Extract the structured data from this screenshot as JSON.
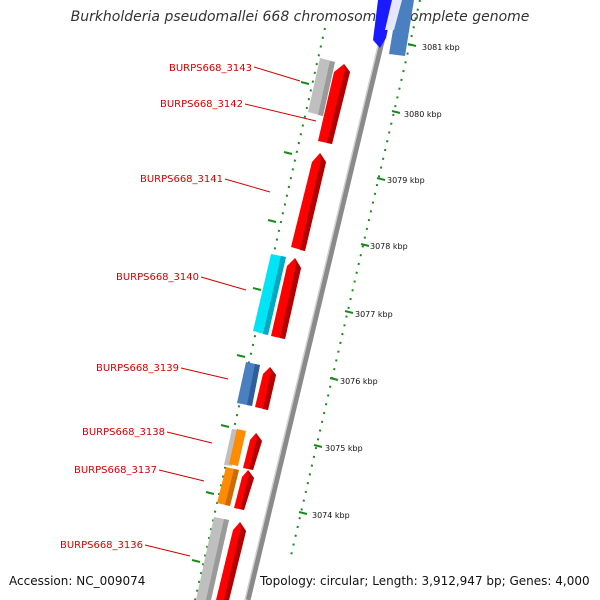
{
  "title": "Burkholderia pseudomallei 668 chromosome I, complete genome",
  "footer": {
    "accession": "Accession: NC_009074",
    "summary": "Topology: circular; Length: 3,912,947 bp; Genes: 4,000"
  },
  "colors": {
    "forward_gene": "#ff0000",
    "gene_other": "#bbbbbb",
    "gene_steelblue": "#4a7fc0",
    "gene_cyan": "#00e5f5",
    "gene_orange": "#ff8c00",
    "gene_blue": "#1a1aff",
    "gene_label": "#d40000",
    "tick": "#1a8a1a",
    "backbone": "#888888"
  },
  "gene_labels": [
    "BURPS668_3143",
    "BURPS668_3142",
    "BURPS668_3141",
    "BURPS668_3140",
    "BURPS668_3139",
    "BURPS668_3138",
    "BURPS668_3137",
    "BURPS668_3136"
  ],
  "kbp_labels": [
    "3081 kbp",
    "3080 kbp",
    "3079 kbp",
    "3078 kbp",
    "3077 kbp",
    "3076 kbp",
    "3075 kbp",
    "3074 kbp"
  ]
}
